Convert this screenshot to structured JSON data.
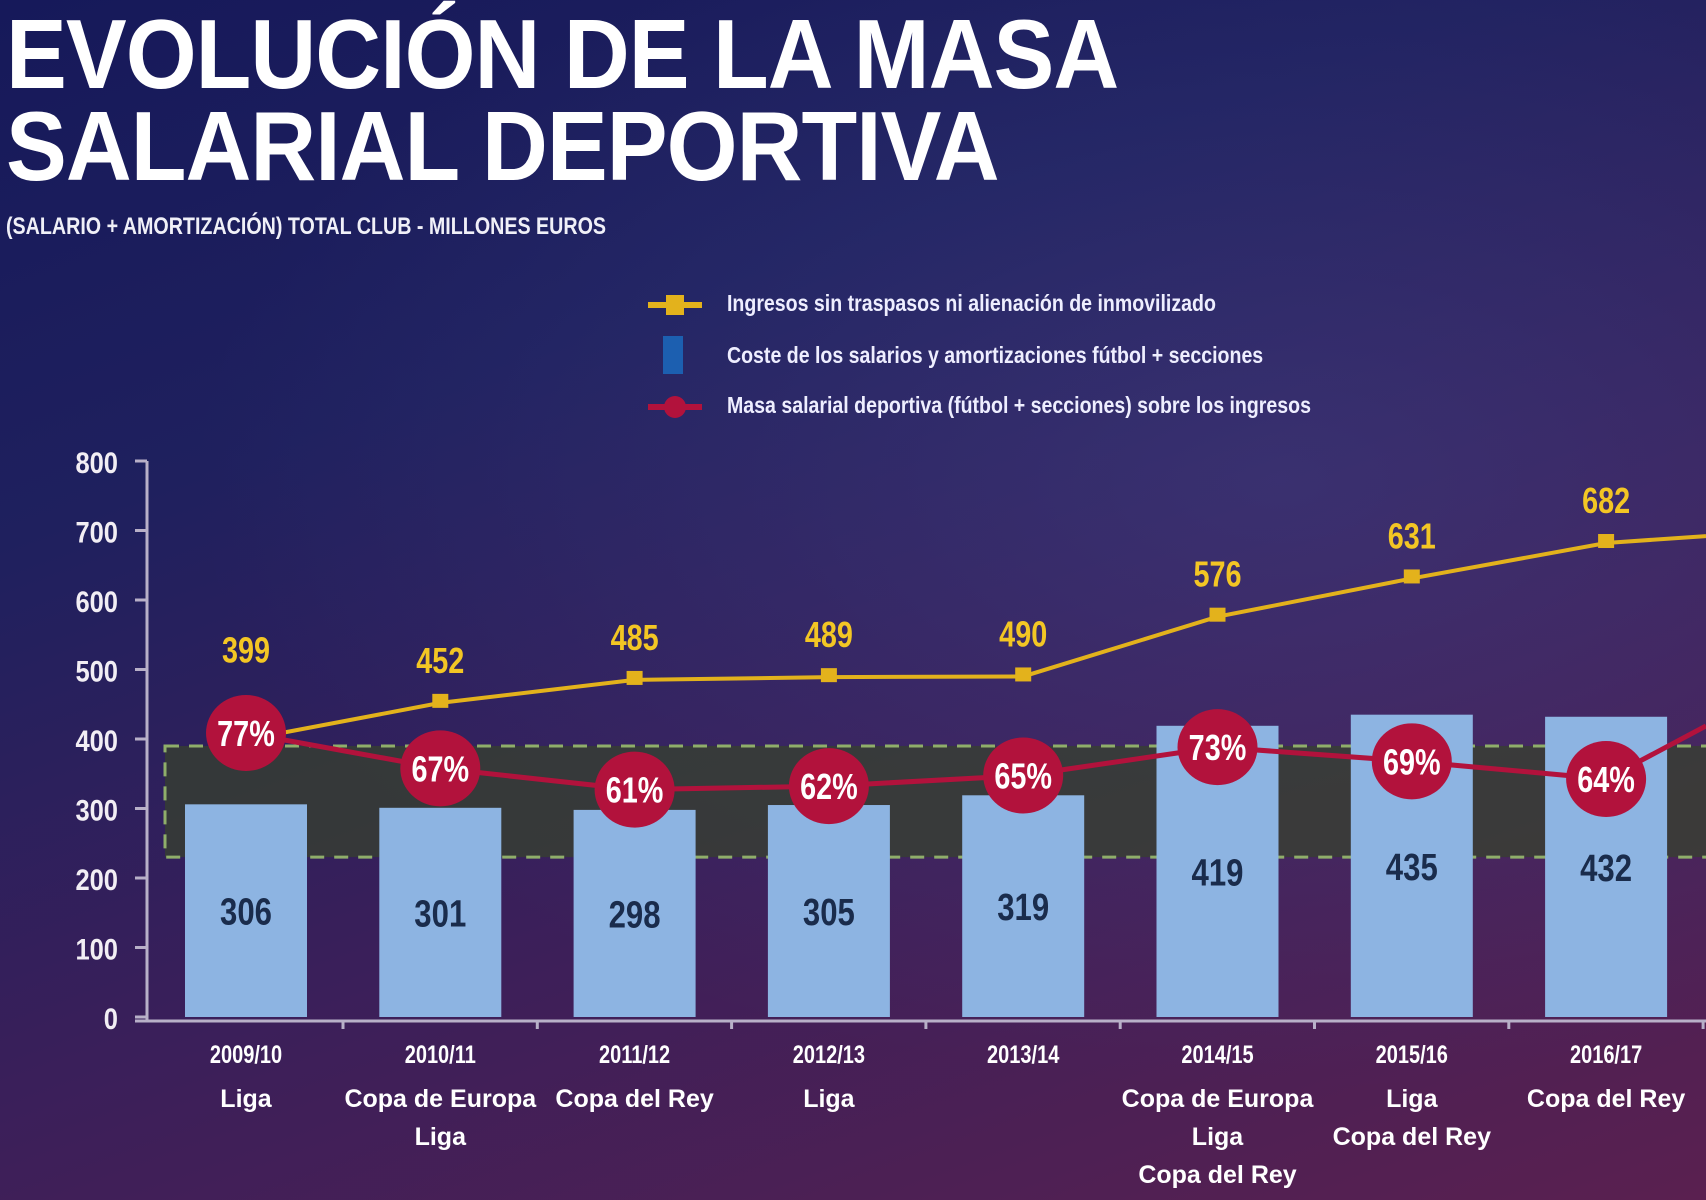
{
  "header": {
    "title_line1": "EVOLUCIÓN DE LA MASA",
    "title_line2": "SALARIAL DEPORTIVA",
    "subtitle": "(SALARIO + AMORTIZACIÓN) TOTAL CLUB  - MILLONES EUROS"
  },
  "colors": {
    "income": "#e3b21c",
    "cost_bar": "#8db4e2",
    "ratio": "#b2123c",
    "band": "#8fae6a"
  },
  "chart_data": {
    "type": "bar",
    "title": "EVOLUCIÓN DE LA MASA SALARIAL DEPORTIVA",
    "subtitle": "(SALARIO + AMORTIZACIÓN) TOTAL CLUB  - MILLONES EUROS",
    "ylim": [
      0,
      800
    ],
    "yticks": [
      "0",
      "100",
      "200",
      "300",
      "400",
      "500",
      "600",
      "700",
      "800"
    ],
    "grid": false,
    "legend_placement": "top",
    "categories": [
      {
        "year": "2009/10",
        "titles": [
          "Liga"
        ]
      },
      {
        "year": "2010/11",
        "titles": [
          "Copa de Europa",
          "Liga"
        ]
      },
      {
        "year": "2011/12",
        "titles": [
          "Copa del Rey"
        ]
      },
      {
        "year": "2012/13",
        "titles": [
          "Liga"
        ]
      },
      {
        "year": "2013/14",
        "titles": []
      },
      {
        "year": "2014/15",
        "titles": [
          "Copa de Europa",
          "Liga",
          "Copa del Rey"
        ]
      },
      {
        "year": "2015/16",
        "titles": [
          "Liga",
          "Copa del Rey"
        ]
      },
      {
        "year": "2016/17",
        "titles": [
          "Copa del Rey"
        ]
      }
    ],
    "series": [
      {
        "name": "Ingresos sin traspasos ni alienación de inmovilizado",
        "type": "line",
        "marker": "square",
        "values": [
          399,
          452,
          485,
          489,
          490,
          576,
          631,
          682
        ]
      },
      {
        "name": "Coste de los salarios y amortizaciones fútbol + secciones",
        "type": "bar",
        "values": [
          306,
          301,
          298,
          305,
          319,
          419,
          435,
          432
        ]
      },
      {
        "name": "Masa salarial deportiva (fútbol + secciones) sobre los ingresos",
        "type": "line",
        "marker": "circle",
        "unit": "%",
        "values": [
          77,
          67,
          61,
          62,
          65,
          73,
          69,
          64
        ]
      }
    ],
    "reference_band": {
      "from": 230,
      "to": 390,
      "style": "dashed"
    }
  }
}
